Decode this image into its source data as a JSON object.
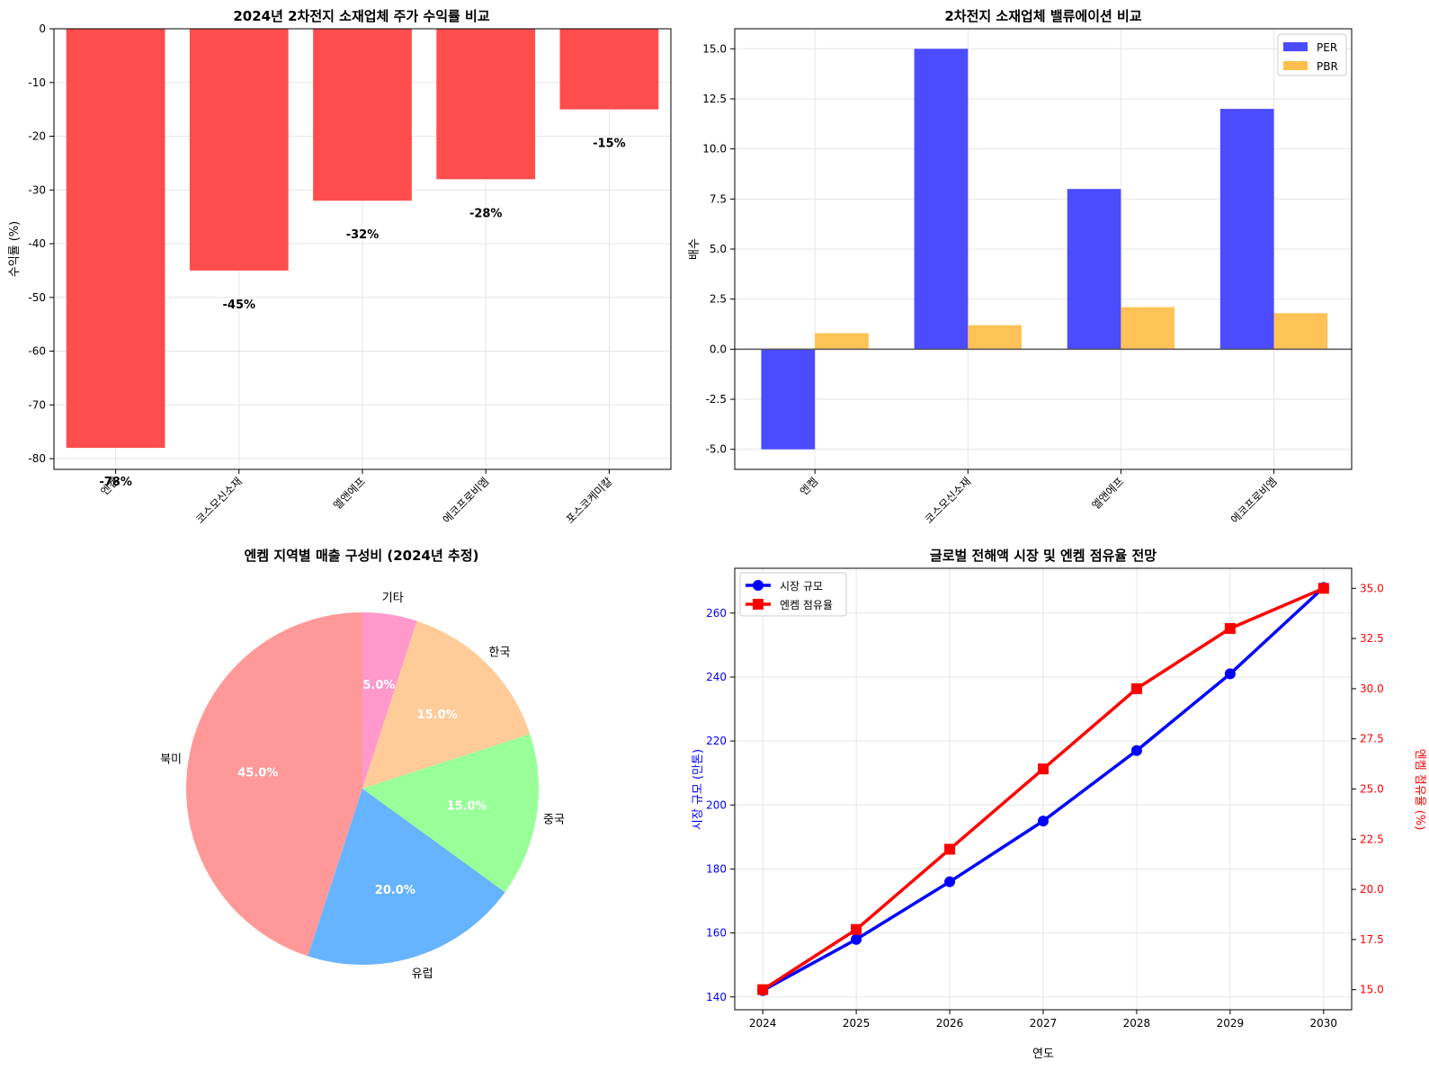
{
  "colors": {
    "bar_negative": "#ff4d4d",
    "per": "#4b4bff",
    "pbr": "#ffbf4d",
    "market": "#0000ff",
    "share": "#ff0000",
    "grid": "#e6e6e6",
    "pie": [
      "#ff9999",
      "#66b3ff",
      "#99ff99",
      "#ffcc99",
      "#ff99cc"
    ]
  },
  "chart_data": [
    {
      "type": "bar",
      "title": "2024년 2차전지 소재업체 주가 수익률 비교",
      "xlabel": "",
      "ylabel": "수익률 (%)",
      "categories": [
        "엔켐",
        "코스모신소재",
        "엘앤에프",
        "에코프로비엠",
        "포스코케미칼"
      ],
      "values": [
        -78,
        -45,
        -32,
        -28,
        -15
      ],
      "data_labels": [
        "-78%",
        "-45%",
        "-32%",
        "-28%",
        "-15%"
      ],
      "ylim": [
        -82,
        0
      ],
      "yticks": [
        0,
        -10,
        -20,
        -30,
        -40,
        -50,
        -60,
        -70,
        -80
      ],
      "ytick_labels": [
        "0",
        "-10",
        "-20",
        "-30",
        "-40",
        "-50",
        "-60",
        "-70",
        "-80"
      ],
      "grid": true
    },
    {
      "type": "bar",
      "title": "2차전지 소재업체 밸류에이션 비교",
      "xlabel": "",
      "ylabel": "배수",
      "categories": [
        "엔켐",
        "코스모신소재",
        "엘앤에프",
        "에코프로비엠"
      ],
      "series": [
        {
          "name": "PER",
          "values": [
            -5.0,
            15.0,
            8.0,
            12.0
          ]
        },
        {
          "name": "PBR",
          "values": [
            0.8,
            1.2,
            2.1,
            1.8
          ]
        }
      ],
      "ylim": [
        -6,
        16
      ],
      "yticks": [
        -5,
        -2.5,
        0,
        2.5,
        5,
        7.5,
        10,
        12.5,
        15
      ],
      "ytick_labels": [
        "-5.0",
        "-2.5",
        "0.0",
        "2.5",
        "5.0",
        "7.5",
        "10.0",
        "12.5",
        "15.0"
      ],
      "legend": "top-right",
      "grid": true
    },
    {
      "type": "pie",
      "title": "엔켐 지역별 매출 구성비 (2024년 추정)",
      "labels": [
        "북미",
        "유럽",
        "중국",
        "한국",
        "기타"
      ],
      "values": [
        45.0,
        20.0,
        15.0,
        15.0,
        5.0
      ],
      "pct_labels": [
        "45.0%",
        "20.0%",
        "15.0%",
        "15.0%",
        "5.0%"
      ]
    },
    {
      "type": "line",
      "title": "글로벌 전해액 시장 및 엔켐 점유율 전망",
      "xlabel": "연도",
      "x": [
        2024,
        2025,
        2026,
        2027,
        2028,
        2029,
        2030
      ],
      "x_labels": [
        "2024",
        "2025",
        "2026",
        "2027",
        "2028",
        "2029",
        "2030"
      ],
      "series": [
        {
          "name": "시장 규모",
          "axis": "left",
          "marker": "circle",
          "values": [
            142,
            158,
            176,
            195,
            217,
            241,
            268
          ]
        },
        {
          "name": "엔켐 점유율",
          "axis": "right",
          "marker": "square",
          "values": [
            15,
            18,
            22,
            26,
            30,
            33,
            35
          ]
        }
      ],
      "ylabel_left": "시장 규모 (만톤)",
      "ylabel_right": "엔켐 점유율 (%)",
      "ylim_left": [
        136,
        274
      ],
      "ylim_right": [
        14.0,
        36.0
      ],
      "yticks_left": [
        140,
        160,
        180,
        200,
        220,
        240,
        260
      ],
      "ytick_labels_left": [
        "140",
        "160",
        "180",
        "200",
        "220",
        "240",
        "260"
      ],
      "yticks_right": [
        15,
        17.5,
        20,
        22.5,
        25,
        27.5,
        30,
        32.5,
        35
      ],
      "ytick_labels_right": [
        "15.0",
        "17.5",
        "20.0",
        "22.5",
        "25.0",
        "27.5",
        "30.0",
        "32.5",
        "35.0"
      ],
      "legend": "top-left",
      "grid": true
    }
  ]
}
